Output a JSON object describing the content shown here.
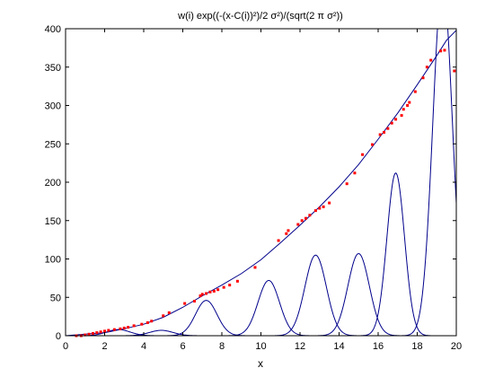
{
  "chart_data": {
    "type": "line",
    "title": "w(i) exp((-(x-C(i))²)/2 σ²)/(sqrt(2 π σ²))",
    "xlabel": "x",
    "ylabel": "",
    "xlim": [
      0,
      20
    ],
    "ylim": [
      0,
      400
    ],
    "xticks": [
      "0",
      "2",
      "4",
      "6",
      "8",
      "10",
      "12",
      "14",
      "16",
      "18",
      "20"
    ],
    "yticks": [
      "0",
      "50",
      "100",
      "150",
      "200",
      "250",
      "300",
      "350",
      "400"
    ],
    "grid": false,
    "colors": {
      "curves": "#00008b",
      "points": "#ff0000",
      "axes": "#000000"
    },
    "gaussians": [
      {
        "center": 2.7,
        "amplitude": 8,
        "sigma": 0.6
      },
      {
        "center": 4.9,
        "amplitude": 7,
        "sigma": 0.6
      },
      {
        "center": 7.2,
        "amplitude": 46,
        "sigma": 0.55
      },
      {
        "center": 10.4,
        "amplitude": 72,
        "sigma": 0.55
      },
      {
        "center": 12.8,
        "amplitude": 105,
        "sigma": 0.55
      },
      {
        "center": 15.0,
        "amplitude": 107,
        "sigma": 0.55
      },
      {
        "center": 16.9,
        "amplitude": 212,
        "sigma": 0.45
      },
      {
        "center": 19.3,
        "amplitude": 460,
        "sigma": 0.5
      }
    ],
    "fit_curve": [
      [
        0,
        0
      ],
      [
        1,
        2
      ],
      [
        2,
        4
      ],
      [
        3,
        9
      ],
      [
        4,
        15
      ],
      [
        5,
        24
      ],
      [
        6,
        37
      ],
      [
        7,
        52
      ],
      [
        8,
        66
      ],
      [
        9,
        81
      ],
      [
        10,
        99
      ],
      [
        11,
        121
      ],
      [
        12,
        144
      ],
      [
        13,
        168
      ],
      [
        14,
        194
      ],
      [
        15,
        223
      ],
      [
        16,
        256
      ],
      [
        17,
        290
      ],
      [
        18,
        327
      ],
      [
        19,
        365
      ],
      [
        19.5,
        385
      ],
      [
        20,
        398
      ]
    ],
    "points": [
      [
        0.55,
        0
      ],
      [
        0.8,
        0
      ],
      [
        1.0,
        1
      ],
      [
        1.2,
        2
      ],
      [
        1.4,
        3
      ],
      [
        1.6,
        4
      ],
      [
        1.8,
        5
      ],
      [
        2.0,
        6
      ],
      [
        2.2,
        7
      ],
      [
        2.5,
        8
      ],
      [
        2.8,
        9
      ],
      [
        3.0,
        10
      ],
      [
        3.2,
        11
      ],
      [
        3.5,
        13
      ],
      [
        3.9,
        15
      ],
      [
        4.2,
        17
      ],
      [
        4.4,
        19
      ],
      [
        5.0,
        26
      ],
      [
        5.3,
        30
      ],
      [
        6.1,
        42
      ],
      [
        6.6,
        45
      ],
      [
        6.9,
        52
      ],
      [
        7.0,
        54
      ],
      [
        7.2,
        55
      ],
      [
        7.4,
        57
      ],
      [
        7.6,
        58
      ],
      [
        7.8,
        60
      ],
      [
        8.1,
        63
      ],
      [
        8.4,
        66
      ],
      [
        8.8,
        71
      ],
      [
        9.7,
        89
      ],
      [
        10.9,
        124
      ],
      [
        11.3,
        133
      ],
      [
        11.4,
        137
      ],
      [
        11.9,
        145
      ],
      [
        12.1,
        150
      ],
      [
        12.3,
        153
      ],
      [
        12.5,
        157
      ],
      [
        12.8,
        163
      ],
      [
        13.0,
        166
      ],
      [
        13.2,
        168
      ],
      [
        13.5,
        173
      ],
      [
        14.4,
        198
      ],
      [
        14.8,
        212
      ],
      [
        15.2,
        236
      ],
      [
        15.7,
        249
      ],
      [
        16.1,
        262
      ],
      [
        16.3,
        265
      ],
      [
        16.5,
        270
      ],
      [
        16.7,
        277
      ],
      [
        16.9,
        282
      ],
      [
        17.2,
        287
      ],
      [
        17.3,
        295
      ],
      [
        17.5,
        300
      ],
      [
        17.6,
        304
      ],
      [
        17.9,
        318
      ],
      [
        18.3,
        336
      ],
      [
        18.5,
        350
      ],
      [
        18.7,
        359
      ],
      [
        19.2,
        371
      ],
      [
        19.4,
        372
      ],
      [
        19.9,
        345
      ]
    ]
  }
}
